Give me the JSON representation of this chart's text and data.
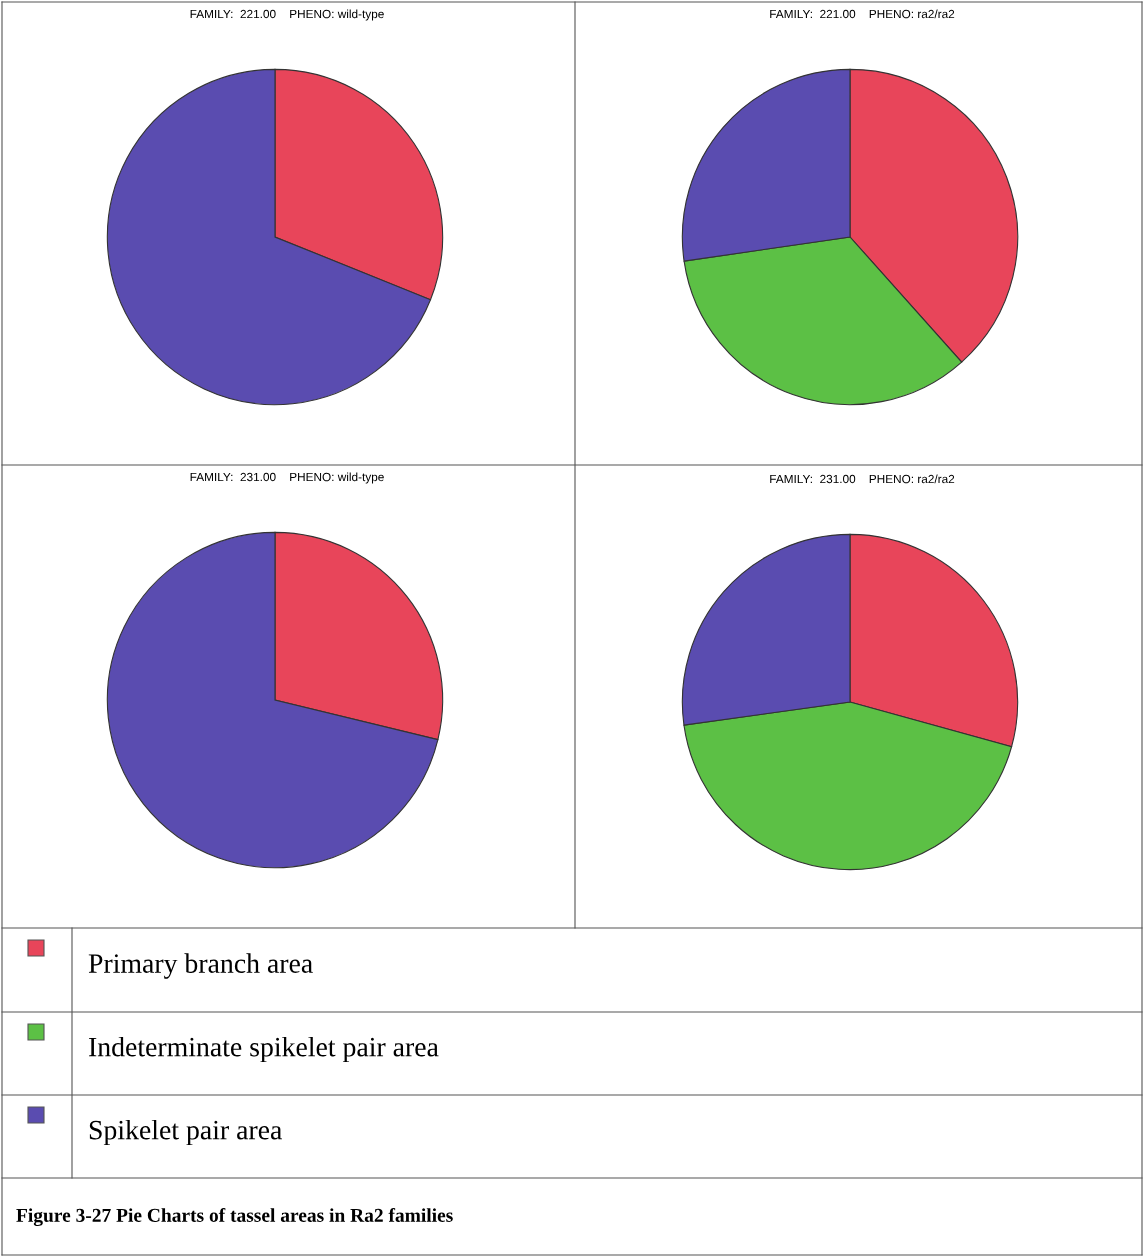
{
  "chart_data": [
    {
      "type": "pie",
      "title": "FAMILY:  221.00    PHENO: wild-type",
      "categories": [
        null,
        null
      ],
      "values": [
        31.1,
        68.9
      ],
      "colors": [
        "#e8455a",
        "#5a4cb0"
      ]
    },
    {
      "type": "pie",
      "title": "FAMILY:  221.00    PHENO: ra2/ra2",
      "categories": [
        "Primary branch area",
        "Indeterminate spikelet pair area",
        "Spikelet pair area"
      ],
      "values": [
        38.4,
        34.3,
        27.3
      ],
      "colors": [
        "#e8455a",
        "#5cc045",
        "#5a4cb0"
      ],
      "legend": "bottom"
    },
    {
      "type": "pie",
      "title": "FAMILY:  231.00    PHENO: wild-type",
      "categories": [
        null,
        null
      ],
      "values": [
        28.8,
        71.2
      ],
      "colors": [
        "#e8455a",
        "#5a4cb0"
      ]
    },
    {
      "type": "pie",
      "title": "FAMILY:  231.00    PHENO: ra2/ra2",
      "categories": [
        null,
        null,
        null
      ],
      "values": [
        29.3,
        43.5,
        27.2
      ],
      "colors": [
        "#e8455a",
        "#5cc045",
        "#5a4cb0"
      ],
      "annotations": [
        "Figure 3-27 Pie Charts of tassel areas in Ra2 families"
      ]
    }
  ]
}
